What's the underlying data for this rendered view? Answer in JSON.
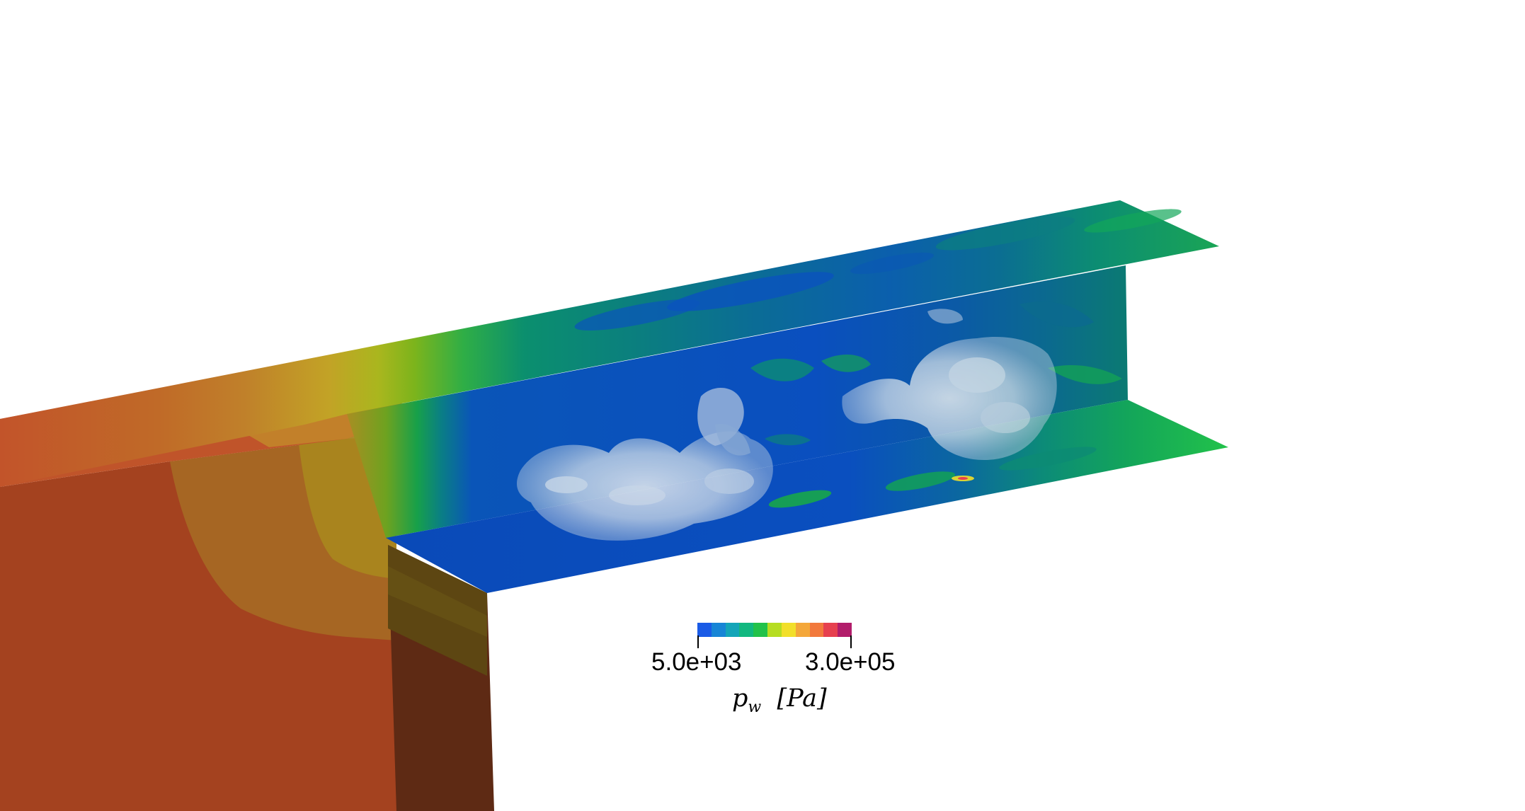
{
  "colorbar": {
    "min_label": "5.0e+03",
    "max_label": "3.0e+05",
    "quantity_symbol": "p",
    "quantity_subscript": "w",
    "unit": "[Pa]",
    "colors": [
      "#1a5be6",
      "#1785d6",
      "#14a5b8",
      "#12b880",
      "#22c24a",
      "#b6dd22",
      "#f2df2a",
      "#f4a73a",
      "#f2793c",
      "#e6404f",
      "#b21d6b"
    ]
  },
  "colors": {
    "background": "#ffffff",
    "red_region": "#c05228",
    "orange_region": "#c0802a",
    "yellow_region": "#c2ad26",
    "green_region": "#1fb04a",
    "teal_region": "#0b8a70",
    "blue_region": "#0a4fbf",
    "isosurface": "#dfe8ee"
  }
}
